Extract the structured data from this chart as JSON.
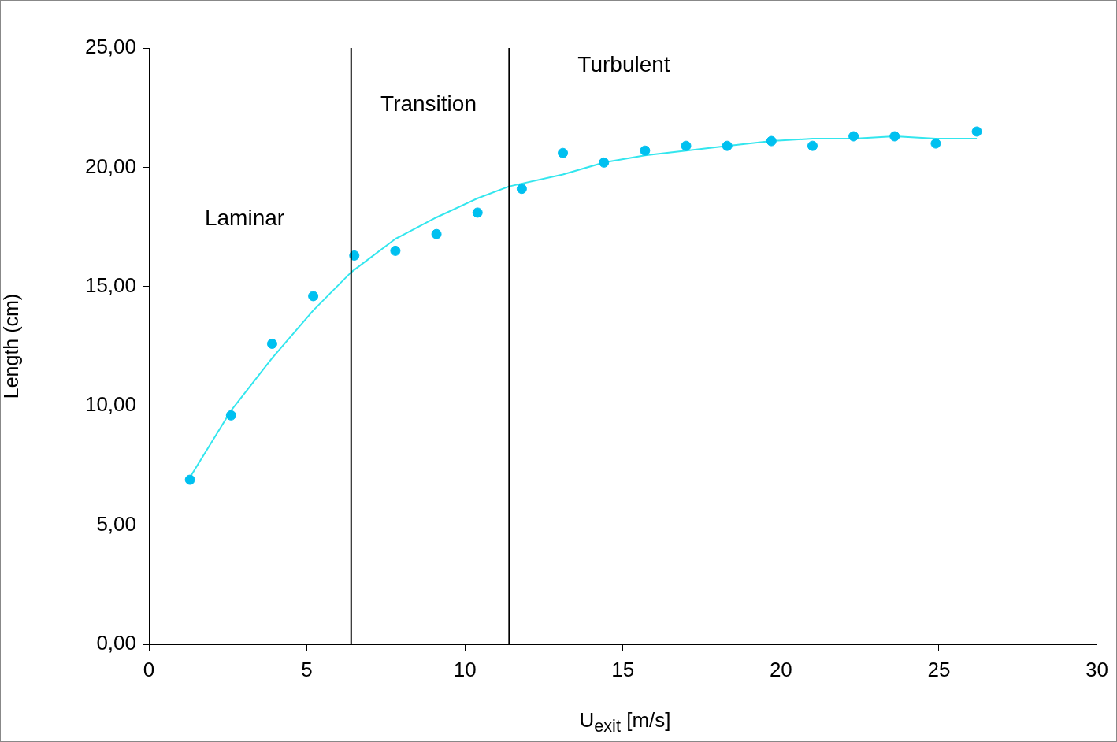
{
  "chart_data": {
    "type": "scatter",
    "xlabel": "U$_{exit}$  [m/s]",
    "ylabel": "Length (cm)",
    "xlim": [
      0,
      30
    ],
    "xticks": [
      0,
      5,
      10,
      15,
      20,
      25,
      30
    ],
    "ylim": [
      0,
      25
    ],
    "yticks": [
      {
        "value": 0,
        "label": "0,00"
      },
      {
        "value": 5,
        "label": "5,00"
      },
      {
        "value": 10,
        "label": "10,00"
      },
      {
        "value": 15,
        "label": "15,00"
      },
      {
        "value": 20,
        "label": "20,00"
      },
      {
        "value": 25,
        "label": "25,00"
      }
    ],
    "grid": false,
    "legend": false,
    "series": [
      {
        "color": "#00c0f0",
        "marker": "circle",
        "x": [
          1.3,
          2.6,
          3.9,
          5.2,
          6.5,
          7.8,
          9.1,
          10.4,
          11.8,
          13.1,
          14.4,
          15.7,
          17.0,
          18.3,
          19.7,
          21.0,
          22.3,
          23.6,
          24.9,
          26.2
        ],
        "values": [
          6.9,
          9.6,
          12.6,
          14.6,
          16.3,
          16.5,
          17.2,
          18.1,
          19.1,
          20.6,
          20.2,
          20.7,
          20.9,
          20.9,
          21.1,
          20.9,
          21.3,
          21.3,
          21.0,
          21.5
        ]
      },
      {
        "type": "line",
        "color": "#33e6ee",
        "marker": "none",
        "line_style": "solid",
        "x": [
          1.3,
          2.6,
          3.9,
          5.2,
          6.4,
          7.8,
          9.1,
          10.4,
          11.4,
          13.1,
          14.4,
          15.7,
          17.0,
          18.3,
          19.7,
          21.0,
          22.3,
          23.6,
          24.9,
          26.2
        ],
        "values": [
          7.0,
          9.8,
          12.0,
          14.0,
          15.6,
          17.0,
          17.9,
          18.7,
          19.2,
          19.7,
          20.2,
          20.5,
          20.7,
          20.9,
          21.1,
          21.2,
          21.2,
          21.3,
          21.2,
          21.2
        ]
      }
    ],
    "ref_lines": [
      {
        "axis": "x",
        "value": 6.4,
        "color": "#000000"
      },
      {
        "axis": "x",
        "value": 11.4,
        "color": "#000000"
      }
    ],
    "annotations": [
      "Laminar",
      "Transition",
      "Turbulent"
    ]
  }
}
